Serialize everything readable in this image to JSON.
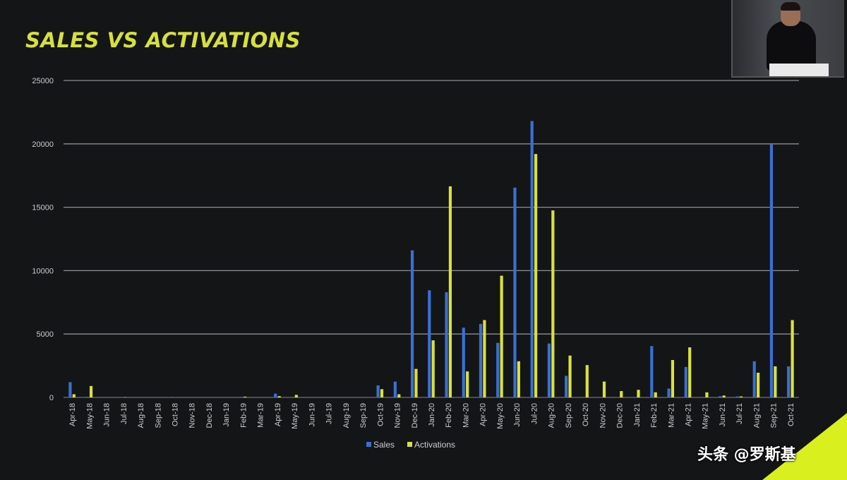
{
  "slide": {
    "title": "SALES VS ACTIVATIONS"
  },
  "watermark": {
    "text": "头条 @罗斯基"
  },
  "colors": {
    "background": "#141517",
    "title": "#d6e03a",
    "sales": "#3b6fd4",
    "activations": "#d9e13c",
    "grid": "#8a8f96",
    "accent_corner": "#d9f01e"
  },
  "chart_data": {
    "type": "bar",
    "title": "SALES VS ACTIVATIONS",
    "xlabel": "",
    "ylabel": "",
    "ylim": [
      0,
      25000
    ],
    "yticks": [
      0,
      5000,
      10000,
      15000,
      20000,
      25000
    ],
    "grid": true,
    "legend_position": "bottom",
    "categories": [
      "Apr-18",
      "May-18",
      "Jun-18",
      "Jul-18",
      "Aug-18",
      "Sep-18",
      "Oct-18",
      "Nov-18",
      "Dec-18",
      "Jan-19",
      "Feb-19",
      "Mar-19",
      "Apr-19",
      "May-19",
      "Jun-19",
      "Jul-19",
      "Aug-19",
      "Sep-19",
      "Oct-19",
      "Nov-19",
      "Dec-19",
      "Jan-20",
      "Feb-20",
      "Mar-20",
      "Apr-20",
      "May-20",
      "Jun-20",
      "Jul-20",
      "Aug-20",
      "Sep-20",
      "Oct-20",
      "Nov-20",
      "Dec-20",
      "Jan-21",
      "Feb-21",
      "Mar-21",
      "Apr-21",
      "May-21",
      "Jun-21",
      "Jul-21",
      "Aug-21",
      "Sep-21",
      "Oct-21"
    ],
    "series": [
      {
        "name": "Sales",
        "color": "#3b6fd4",
        "values": [
          1200,
          50,
          0,
          20,
          0,
          0,
          40,
          0,
          0,
          0,
          40,
          0,
          300,
          0,
          0,
          0,
          0,
          0,
          950,
          1250,
          11600,
          8450,
          8300,
          5500,
          5800,
          4300,
          16550,
          21800,
          4250,
          1700,
          0,
          0,
          0,
          0,
          4050,
          700,
          2400,
          0,
          100,
          80,
          2850,
          19950,
          2450
        ]
      },
      {
        "name": "Activations",
        "color": "#d9e13c",
        "values": [
          250,
          900,
          0,
          20,
          0,
          0,
          0,
          0,
          0,
          0,
          60,
          0,
          100,
          200,
          0,
          0,
          0,
          0,
          650,
          250,
          2250,
          4500,
          16650,
          2050,
          6100,
          9600,
          2850,
          19200,
          14750,
          3300,
          2550,
          1250,
          500,
          600,
          400,
          2950,
          3950,
          400,
          150,
          80,
          1950,
          2450,
          6100
        ]
      }
    ]
  }
}
